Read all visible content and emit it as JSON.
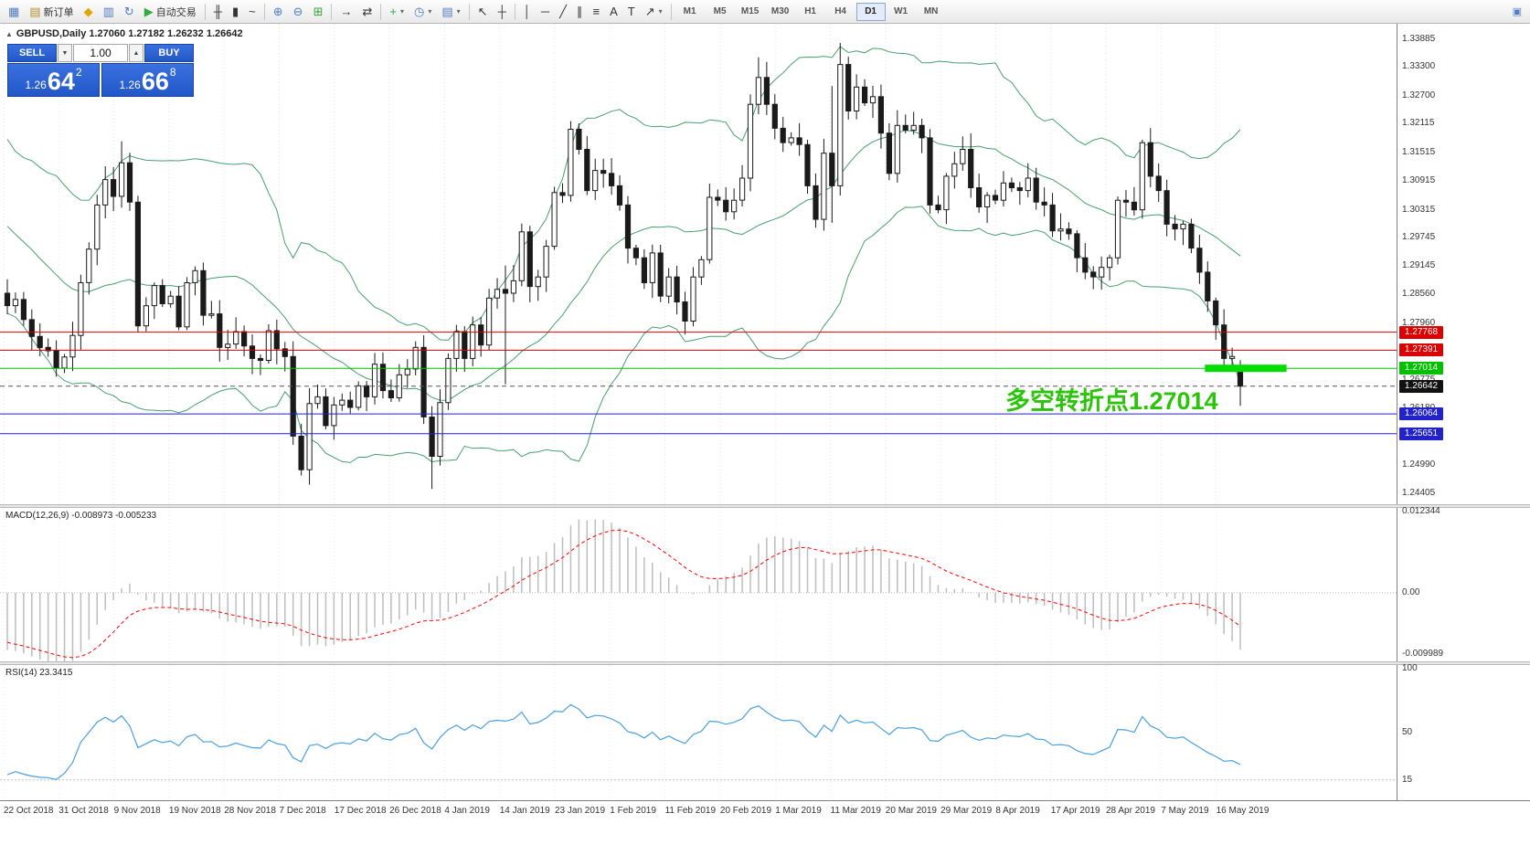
{
  "toolbar": {
    "items": [
      {
        "name": "terminal-window-icon",
        "glyph": "▦",
        "color": "#4f7ec2",
        "interactable": false
      },
      {
        "name": "new-order-button",
        "glyph": "▤",
        "label": "新订单",
        "color": "#b08f2a",
        "interactable": true
      },
      {
        "name": "market-icon",
        "glyph": "◆",
        "color": "#e0a800",
        "interactable": true
      },
      {
        "name": "charts-grid-icon",
        "glyph": "▥",
        "color": "#4f7ec2",
        "interactable": true
      },
      {
        "name": "profiles-icon",
        "glyph": "↻",
        "color": "#4f7ec2",
        "interactable": true
      },
      {
        "name": "auto-trading-button",
        "glyph": "▶",
        "label": "自动交易",
        "color": "#2fae3f",
        "interactable": true
      },
      {
        "sep": true
      },
      {
        "name": "bar-chart-icon",
        "glyph": "╫",
        "interactable": true
      },
      {
        "name": "candlestick-chart-icon",
        "glyph": "▮",
        "interactable": true
      },
      {
        "name": "line-chart-icon",
        "glyph": "~",
        "interactable": true
      },
      {
        "sep": true
      },
      {
        "name": "zoom-in-icon",
        "glyph": "⊕",
        "color": "#4f7ec2",
        "interactable": true
      },
      {
        "name": "zoom-out-icon",
        "glyph": "⊖",
        "color": "#4f7ec2",
        "interactable": true
      },
      {
        "name": "tile-windows-icon",
        "glyph": "⊞",
        "color": "#3aa33a",
        "interactable": true
      },
      {
        "sep": true
      },
      {
        "name": "auto-scroll-icon",
        "glyph": "→",
        "interactable": true
      },
      {
        "name": "chart-shift-icon",
        "glyph": "⇄",
        "interactable": true
      },
      {
        "sep": true
      },
      {
        "name": "indicators-button",
        "glyph": "+",
        "color": "#2fae3f",
        "caret": true,
        "interactable": true
      },
      {
        "name": "periods-button",
        "glyph": "◷",
        "color": "#4f7ec2",
        "caret": true,
        "interactable": true
      },
      {
        "name": "templates-button",
        "glyph": "▤",
        "color": "#4f7ec2",
        "caret": true,
        "interactable": true
      },
      {
        "sep": true
      },
      {
        "name": "cursor-tool",
        "glyph": "↖",
        "interactable": true
      },
      {
        "name": "crosshair-tool",
        "glyph": "┼",
        "interactable": true
      },
      {
        "sep": true
      },
      {
        "name": "vertical-line-tool",
        "glyph": "│",
        "interactable": true
      },
      {
        "name": "horizontal-line-tool",
        "glyph": "─",
        "interactable": true
      },
      {
        "name": "trendline-tool",
        "glyph": "╱",
        "interactable": true
      },
      {
        "name": "channel-tool",
        "glyph": "∥",
        "interactable": true
      },
      {
        "name": "fibonacci-tool",
        "glyph": "≡",
        "interactable": true
      },
      {
        "name": "text-tool",
        "glyph": "A",
        "interactable": true
      },
      {
        "name": "label-tool",
        "glyph": "T",
        "interactable": true
      },
      {
        "name": "arrows-tool",
        "glyph": "↗",
        "caret": true,
        "interactable": true
      },
      {
        "sep": true
      }
    ],
    "timeframes": [
      "M1",
      "M5",
      "M15",
      "M30",
      "H1",
      "H4",
      "D1",
      "W1",
      "MN"
    ],
    "active_timeframe": "D1",
    "right_icon": {
      "name": "window-restore-icon",
      "glyph": "▣"
    }
  },
  "chart": {
    "symbol_line": "GBPUSD,Daily  1.27060 1.27182 1.26232 1.26642",
    "symbol": "GBPUSD",
    "period": "Daily"
  },
  "one_click": {
    "sell_label": "SELL",
    "buy_label": "BUY",
    "lot": "1.00",
    "decrease_glyph": "▼",
    "increase_glyph": "▲",
    "sell_prefix": "1.26",
    "sell_big": "64",
    "sell_sup": "2",
    "buy_prefix": "1.26",
    "buy_big": "66",
    "buy_sup": "8"
  },
  "annotation": {
    "text": "多空转折点1.27014",
    "color": "#2cc40a"
  },
  "hlines": [
    {
      "price": 1.27768,
      "label": "1.27768",
      "color": "#dd0000"
    },
    {
      "price": 1.27391,
      "label": "1.27391",
      "color": "#dd0000"
    },
    {
      "price": 1.27014,
      "label": "1.27014",
      "color": "#00c000"
    },
    {
      "price": 1.26064,
      "label": "1.26064",
      "color": "#2222cc"
    },
    {
      "price": 1.25651,
      "label": "1.25651",
      "color": "#2222cc"
    }
  ],
  "highlight_segment": {
    "price": 1.27014,
    "start_index": 147,
    "bars": 10,
    "color": "#00dd00"
  },
  "current_price": {
    "value": 1.26642,
    "label": "1.26642",
    "color": "#111111"
  },
  "price_axis": {
    "max": 1.342,
    "min": 1.2418,
    "ticks": [
      "1.33885",
      "1.33300",
      "1.32700",
      "1.32115",
      "1.31515",
      "1.30915",
      "1.30315",
      "1.29745",
      "1.29145",
      "1.28560",
      "1.27960",
      "1.27375",
      "1.26775",
      "1.26180",
      "1.25585",
      "1.24990",
      "1.24405"
    ]
  },
  "dates": [
    "22 Oct 2018",
    "31 Oct 2018",
    "9 Nov 2018",
    "19 Nov 2018",
    "28 Nov 2018",
    "7 Dec 2018",
    "17 Dec 2018",
    "26 Dec 2018",
    "4 Jan 2019",
    "14 Jan 2019",
    "23 Jan 2019",
    "1 Feb 2019",
    "11 Feb 2019",
    "20 Feb 2019",
    "1 Mar 2019",
    "11 Mar 2019",
    "20 Mar 2019",
    "29 Mar 2019",
    "8 Apr 2019",
    "17 Apr 2019",
    "28 Apr 2019",
    "7 May 2019",
    "16 May 2019"
  ],
  "indicators": {
    "macd_label": "MACD(12,26,9) -0.008973 -0.005233",
    "rsi_label": "RSI(14) 23.3415"
  },
  "chart_data": {
    "type": "candlestick",
    "symbol": "GBPUSD",
    "timeframe": "Daily",
    "candle_up_fill": "#ffffff",
    "candle_down_fill": "#1a1a1a",
    "candle_stroke": "#1a1a1a",
    "pre_closes": [
      1.3248,
      1.318,
      1.3126,
      1.309,
      1.3112,
      1.3075,
      1.3042,
      1.3068,
      1.3022,
      1.2985,
      1.2952,
      1.2918,
      1.2965,
      1.2998,
      1.3012,
      1.2978,
      1.2942,
      1.2912,
      1.2888,
      1.2858
    ],
    "closes": [
      1.2832,
      1.2845,
      1.2803,
      1.2768,
      1.2745,
      1.2738,
      1.2702,
      1.2725,
      1.277,
      1.288,
      1.295,
      1.3042,
      1.3095,
      1.306,
      1.313,
      1.3048,
      1.279,
      1.2832,
      1.2874,
      1.2836,
      1.2852,
      1.2788,
      1.288,
      1.2905,
      1.2812,
      1.2815,
      1.2745,
      1.2752,
      1.2778,
      1.2748,
      1.2722,
      1.2718,
      1.278,
      1.2742,
      1.2726,
      1.256,
      1.249,
      1.2628,
      1.2642,
      1.2582,
      1.2625,
      1.2635,
      1.262,
      1.2665,
      1.2642,
      1.271,
      1.2655,
      1.264,
      1.2688,
      1.27,
      1.2745,
      1.26,
      1.2518,
      1.263,
      1.2722,
      1.2778,
      1.2722,
      1.2792,
      1.275,
      1.2848,
      1.2866,
      1.2858,
      1.2884,
      1.2986,
      1.2872,
      1.2892,
      1.2956,
      1.3068,
      1.3062,
      1.32,
      1.3158,
      1.3072,
      1.3114,
      1.3108,
      1.3082,
      1.3042,
      1.2952,
      1.2932,
      1.288,
      1.2942,
      1.2852,
      1.2892,
      1.284,
      1.28,
      1.2892,
      1.2928,
      1.3058,
      1.3052,
      1.3028,
      1.3052,
      1.3098,
      1.3252,
      1.3308,
      1.3252,
      1.3202,
      1.3172,
      1.3182,
      1.3168,
      1.3082,
      1.3012,
      1.315,
      1.3082,
      1.3335,
      1.3238,
      1.3288,
      1.3255,
      1.3268,
      1.3192,
      1.3108,
      1.3208,
      1.3198,
      1.3208,
      1.3182,
      1.3042,
      1.3032,
      1.3102,
      1.3128,
      1.3158,
      1.3078,
      1.3038,
      1.3062,
      1.3052,
      1.3088,
      1.3078,
      1.3072,
      1.3098,
      1.3048,
      1.3042,
      1.2988,
      1.2992,
      1.2982,
      1.2932,
      1.2902,
      1.2892,
      1.2912,
      1.2932,
      1.3052,
      1.3048,
      1.3032,
      1.3172,
      1.3102,
      1.3072,
      1.3002,
      1.2992,
      1.3002,
      1.2952,
      1.2902,
      1.2842,
      1.2792,
      1.2722,
      1.2726,
      1.26642
    ],
    "wick": {
      "base": 0.0006,
      "range": 0.0028
    },
    "overrides": {
      "14": {
        "h": 1.3175
      },
      "16": {
        "l": 1.2776
      },
      "36": {
        "l": 1.2478
      },
      "52": {
        "l": 1.245
      },
      "61": {
        "h": 1.2916,
        "l": 1.2668
      },
      "69": {
        "h": 1.3217
      },
      "83": {
        "l": 1.2772
      },
      "92": {
        "h": 1.335
      },
      "101": {
        "h": 1.329,
        "l": 1.3005
      },
      "102": {
        "h": 1.338
      },
      "139": {
        "h": 1.3178
      },
      "151": {
        "o": 1.2706,
        "h": 1.27182,
        "l": 1.26232
      }
    },
    "last_candle_ohlc": {
      "o": 1.2706,
      "h": 1.27182,
      "l": 1.26232,
      "c": 1.26642
    },
    "bollinger": {
      "period": 20,
      "deviation": 2,
      "color": "#46a06e"
    },
    "macd": {
      "fast": 12,
      "slow": 26,
      "signal": 9,
      "value": -0.008973,
      "signal_value": -0.005233,
      "hist_color": "#bdbdbd",
      "signal_color": "#ff0000",
      "max": 0.012344,
      "min": -0.009989,
      "ticks": [
        "0.012344",
        "0.00",
        "-0.009989"
      ]
    },
    "rsi": {
      "period": 14,
      "value": 23.3415,
      "color": "#4aa0df",
      "max": 100,
      "min": 0,
      "level": 15,
      "ticks": [
        "100",
        "50",
        "15"
      ]
    }
  }
}
